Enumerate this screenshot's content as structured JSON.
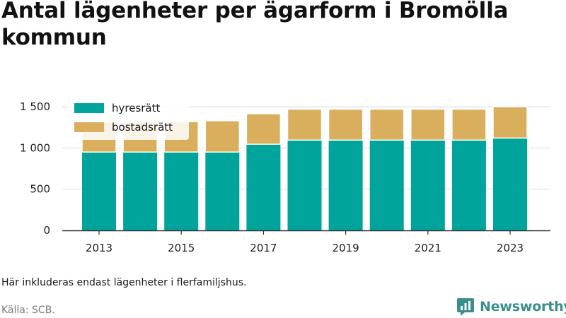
{
  "title": "Antal lägenheter per ägarform i Bromölla kommun",
  "note": "Här inkluderas endast lägenheter i flerfamiljshus.",
  "source": "Källa: SCB.",
  "brand": {
    "name": "Newsworthy",
    "color": "#3a8f8a"
  },
  "chart_data": {
    "type": "bar",
    "stacked": true,
    "title": "Antal lägenheter per ägarform i Bromölla kommun",
    "xlabel": "",
    "ylabel": "",
    "categories": [
      "2013",
      "2014",
      "2015",
      "2016",
      "2017",
      "2018",
      "2019",
      "2020",
      "2021",
      "2022",
      "2023"
    ],
    "x_tick_labels": [
      "2013",
      "2015",
      "2017",
      "2019",
      "2021",
      "2023"
    ],
    "ylim": [
      0,
      1500
    ],
    "y_ticks": [
      0,
      500,
      1000,
      1500
    ],
    "y_tick_labels": [
      "0",
      "500",
      "1 000",
      "1 500"
    ],
    "grid": true,
    "legend_position": "top-left",
    "series": [
      {
        "name": "hyresrätt",
        "color": "#00a49a",
        "values": [
          950,
          950,
          950,
          950,
          1045,
          1095,
          1095,
          1095,
          1095,
          1095,
          1120
        ]
      },
      {
        "name": "bostadsrätt",
        "color": "#d9ae5c",
        "values": [
          370,
          370,
          370,
          380,
          370,
          375,
          375,
          375,
          375,
          375,
          380
        ]
      }
    ]
  }
}
